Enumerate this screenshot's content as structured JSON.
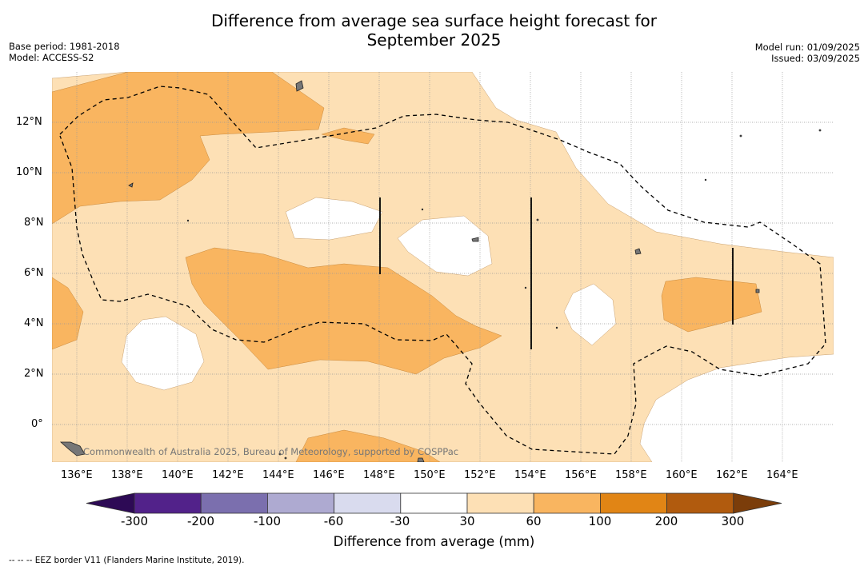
{
  "title_line1": "Difference from average sea surface height forecast for",
  "title_line2": "September 2025",
  "base_period": "Base period: 1981-2018",
  "model": "Model: ACCESS-S2",
  "model_run": "Model run: 01/09/2025",
  "issued": "Issued: 03/09/2025",
  "copyright": "Commonwealth of Australia 2025, Bureau of Meteorology, supported by COSPPac",
  "lat_labels": [
    "12°N",
    "10°N",
    "8°N",
    "6°N",
    "4°N",
    "2°N",
    "0°"
  ],
  "lon_labels": [
    "136°E",
    "138°E",
    "140°E",
    "142°E",
    "144°E",
    "146°E",
    "148°E",
    "150°E",
    "152°E",
    "154°E",
    "156°E",
    "158°E",
    "160°E",
    "162°E",
    "164°E"
  ],
  "colorbar": {
    "title": "Difference from average (mm)",
    "ticks": [
      "-300",
      "-200",
      "-100",
      "-60",
      "-30",
      "30",
      "60",
      "100",
      "200",
      "300"
    ],
    "colors": [
      "#2d0a55",
      "#52228a",
      "#7b6fae",
      "#aeaad1",
      "#d9dbee",
      "#ffffff",
      "#fde0b5",
      "#f9b560",
      "#e18515",
      "#b15b0e",
      "#7b3d0a"
    ]
  },
  "fill_colors": {
    "near_zero": "#ffffff",
    "30_60": "#fde0b5",
    "60_100": "#f9b560"
  },
  "footer": "-- -- -- EEZ border V11 (Flanders Marine Institute, 2019)."
}
